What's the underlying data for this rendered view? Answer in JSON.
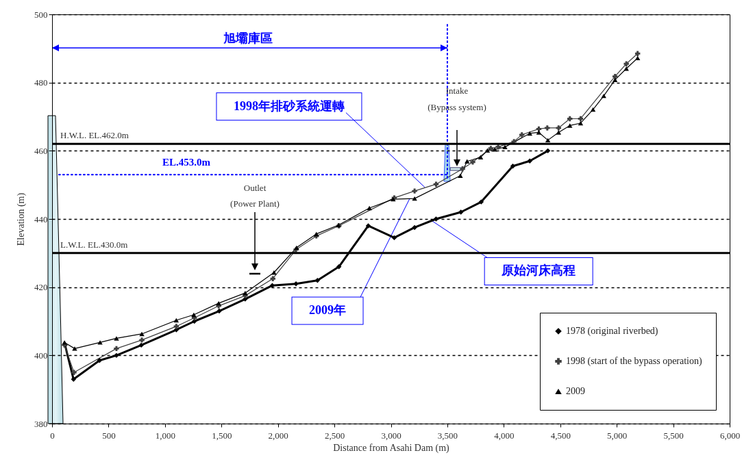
{
  "chart_data": {
    "type": "line",
    "xlabel": "Distance from Asahi Dam (m)",
    "ylabel": "Elevation (m)",
    "xlim": [
      0,
      6000
    ],
    "xticks": [
      0,
      500,
      {
        "value": 1000,
        "label": "1,000"
      },
      {
        "value": 1500,
        "label": "1,500"
      },
      {
        "value": 2000,
        "label": "2,000"
      },
      {
        "value": 2500,
        "label": "2,500"
      },
      {
        "value": 3000,
        "label": "3,000"
      },
      {
        "value": 3500,
        "label": "3,500"
      },
      {
        "value": 4000,
        "label": "4,000"
      },
      {
        "value": 4500,
        "label": "4,500"
      },
      {
        "value": 5000,
        "label": "5,000"
      },
      {
        "value": 5500,
        "label": "5,500"
      },
      {
        "value": 6000,
        "label": "6,000"
      }
    ],
    "ylim": [
      380,
      500
    ],
    "yticks": [
      380,
      400,
      420,
      440,
      460,
      480,
      500
    ],
    "grid": "y",
    "legend": "bottom right",
    "line_style": "solid",
    "series": [
      {
        "name": "1978 (original riverbed)",
        "color": "#000000",
        "marker": "diamond",
        "x": [
          115,
          190,
          420,
          570,
          790,
          1100,
          1260,
          1480,
          1710,
          1950,
          2160,
          2350,
          2540,
          2800,
          3030,
          3210,
          3400,
          3620,
          3800,
          4080,
          4230,
          4390
        ],
        "values": [
          403,
          393,
          398.5,
          400,
          403,
          407.5,
          410,
          413,
          416.5,
          420.5,
          421,
          422,
          426,
          438,
          434.5,
          437.5,
          440,
          442,
          445,
          455.5,
          457,
          460
        ]
      },
      {
        "name": "1998 (start of the bypass operation)",
        "color": "#404040",
        "marker": "cross",
        "x": [
          110,
          194,
          570,
          795,
          1100,
          1260,
          1475,
          1710,
          1955,
          2160,
          2340,
          2540,
          3030,
          3210,
          3400,
          3635,
          3725,
          3885,
          3950,
          4090,
          4160,
          4310,
          4385,
          4485,
          4585,
          4680,
          4985,
          5085,
          5185
        ],
        "values": [
          403,
          395,
          402,
          404.5,
          408.5,
          411,
          414.5,
          417.5,
          422.5,
          431,
          435,
          438,
          446.2,
          448.2,
          450.2,
          454.7,
          456.7,
          460.7,
          461.1,
          462.7,
          464.7,
          466.4,
          466.7,
          466.7,
          469.4,
          469.4,
          481.8,
          485.5,
          488.5
        ]
      },
      {
        "name": "2009",
        "color": "#000000",
        "marker": "triangle",
        "x": [
          110,
          200,
          425,
          570,
          795,
          1100,
          1255,
          1475,
          1710,
          1965,
          2165,
          2340,
          2535,
          2810,
          3020,
          3210,
          3615,
          3675,
          3795,
          3855,
          3920,
          4010,
          4230,
          4310,
          4390,
          4485,
          4585,
          4680,
          4790,
          4885,
          4985,
          5085,
          5185
        ],
        "values": [
          403.8,
          402,
          403.8,
          405,
          406.3,
          410.3,
          411.9,
          415.3,
          418.3,
          424.3,
          431.6,
          435.6,
          438.2,
          443.2,
          445.8,
          446,
          452.7,
          456.9,
          458.1,
          460.1,
          460.4,
          461.1,
          465.1,
          465.4,
          463.1,
          465.4,
          467.4,
          468.1,
          472.1,
          476.1,
          480.8,
          484.1,
          487.2
        ]
      },
      {
        "color": "#0000ff",
        "marker": "none",
        "line_style": "dotted",
        "x": [
          60,
          3500
        ],
        "values": [
          453,
          453
        ]
      },
      {
        "color": "#0000ff",
        "marker": "none",
        "line_style": "dotted",
        "x": [
          3500,
          3500
        ],
        "values": [
          497,
          452
        ]
      }
    ],
    "ref_lines": [
      {
        "axis": "y",
        "value": 462,
        "label": "H.W.L.  EL.462.0m",
        "color": "#000000"
      },
      {
        "axis": "y",
        "value": 430,
        "label": "L.W.L.  EL.430.0m",
        "color": "#000000"
      }
    ],
    "annotations": [
      "旭壩庫區",
      {
        "text": "1998年排砂系統運轉",
        "x": 3300,
        "y": 449.3
      },
      {
        "text": "2009年",
        "x": 3167,
        "y": 446
      },
      {
        "text": "原始河床高程",
        "x": 3362,
        "y": 439.5
      },
      "Outlet",
      "(Power Plant)",
      "Intake",
      "(Bypass system)",
      "EL.453.0m"
    ]
  }
}
